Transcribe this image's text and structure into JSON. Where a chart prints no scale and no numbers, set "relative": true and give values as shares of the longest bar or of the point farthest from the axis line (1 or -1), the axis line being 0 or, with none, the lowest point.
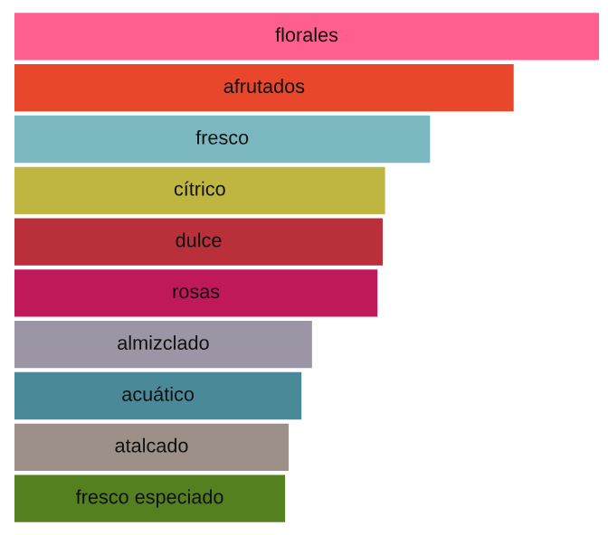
{
  "chart_data": {
    "type": "bar",
    "orientation": "horizontal",
    "relative": true,
    "categories": [
      "florales",
      "afrutados",
      "fresco",
      "cítrico",
      "dulce",
      "rosas",
      "almizclado",
      "acuático",
      "atalcado",
      "fresco especiado"
    ],
    "values": [
      1,
      0.854,
      0.711,
      0.634,
      0.63,
      0.621,
      0.509,
      0.491,
      0.469,
      0.463
    ],
    "colors": [
      "#ff5f8f",
      "#e8472c",
      "#7bb8c0",
      "#bfb541",
      "#b9303b",
      "#c0195a",
      "#9c95a5",
      "#4a8a98",
      "#9c9088",
      "#548020"
    ],
    "legend": false
  }
}
